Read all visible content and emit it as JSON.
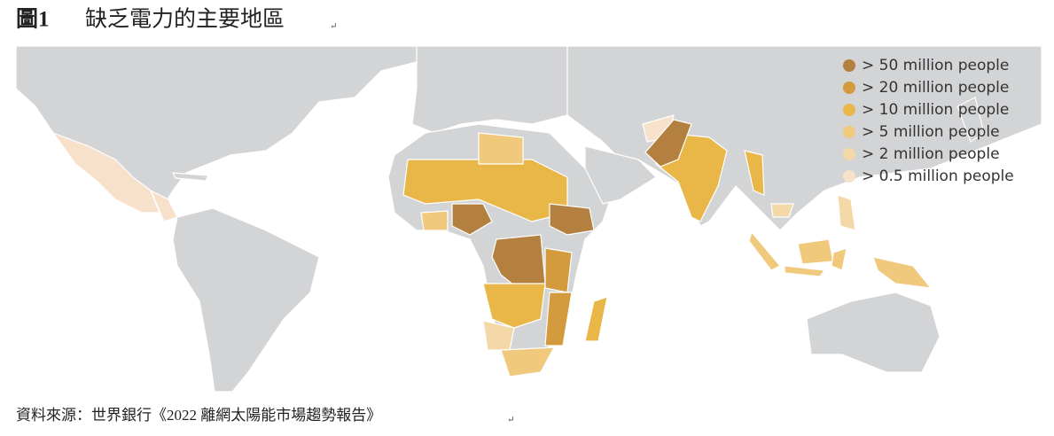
{
  "header": {
    "figure_label": "圖1",
    "title": "缺乏電力的主要地區",
    "mark": "↵"
  },
  "legend": [
    {
      "label": "> 50 million people",
      "color": "#b3803f"
    },
    {
      "label": "> 20 million people",
      "color": "#d39a3e"
    },
    {
      "label": "> 10 million people",
      "color": "#e9b648"
    },
    {
      "label": "> 5 million people",
      "color": "#f1c97c"
    },
    {
      "label": "> 2 million people",
      "color": "#f5d8a8"
    },
    {
      "label": "> 0.5 million people",
      "color": "#f8e1cb"
    }
  ],
  "source": {
    "text": "資料來源：世界銀行《2022 離網太陽能市場趨勢報告》",
    "mark": "↵"
  }
}
